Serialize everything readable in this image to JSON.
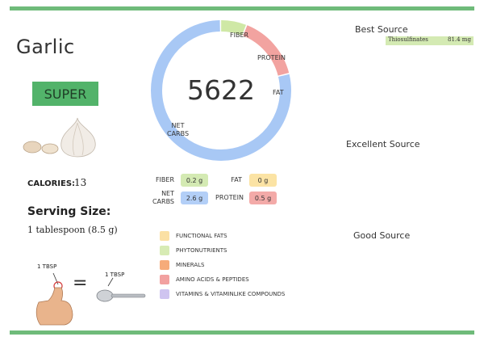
{
  "food": {
    "name": "Garlic",
    "badge": "SUPER",
    "calories_label": "CALORIES:",
    "calories_value": "13",
    "serving_label": "Serving Size:",
    "serving_value": "1 tablespoon (8.5 g)"
  },
  "macro_chart": {
    "total": "5622",
    "segments": [
      {
        "name": "FIBER",
        "label": "FIBER",
        "value_g": 0.2,
        "color": "#cfe8a6"
      },
      {
        "name": "PROTEIN",
        "label": "PROTEIN",
        "value_g": 0.5,
        "color": "#f2a3a0"
      },
      {
        "name": "FAT",
        "label": "FAT",
        "value_g": 0,
        "color": "#f9dd95"
      },
      {
        "name": "NET CARBS",
        "label_line1": "NET",
        "label_line2": "CARBS",
        "value_g": 2.6,
        "color": "#a8c8f5"
      }
    ]
  },
  "nutrients": {
    "fiber": {
      "label": "FIBER",
      "value": "0.2 g",
      "color": "#d4eab3"
    },
    "fat": {
      "label": "FAT",
      "value": "0 g",
      "color": "#fbe3a4"
    },
    "net_carbs": {
      "label_line1": "NET",
      "label_line2": "CARBS",
      "value": "2.6 g",
      "color": "#b3cff7"
    },
    "protein": {
      "label": "PROTEIN",
      "value": "0.5 g",
      "color": "#f3aaa8"
    }
  },
  "legend": [
    {
      "label": "FUNCTIONAL FATS",
      "color": "#fbe0a4"
    },
    {
      "label": "PHYTONUTRIENTS",
      "color": "#d7ebb4"
    },
    {
      "label": "MINERALS",
      "color": "#f6ab7a"
    },
    {
      "label": "AMINO ACIDS & PEPTIDES",
      "color": "#f2a1a0"
    },
    {
      "label": "VITAMINS & VITAMINLIKE COMPOUNDS",
      "color": "#cfc4f0"
    }
  ],
  "sources": {
    "best_heading": "Best Source",
    "best_items": [
      {
        "name": "Thiosulfinates",
        "amount": "81.4 mg"
      }
    ],
    "excellent_heading": "Excellent Source",
    "good_heading": "Good Source"
  },
  "serving_visual": {
    "thumb_label": "1 TBSP",
    "spoon_label": "1 TBSP",
    "equals": "="
  }
}
